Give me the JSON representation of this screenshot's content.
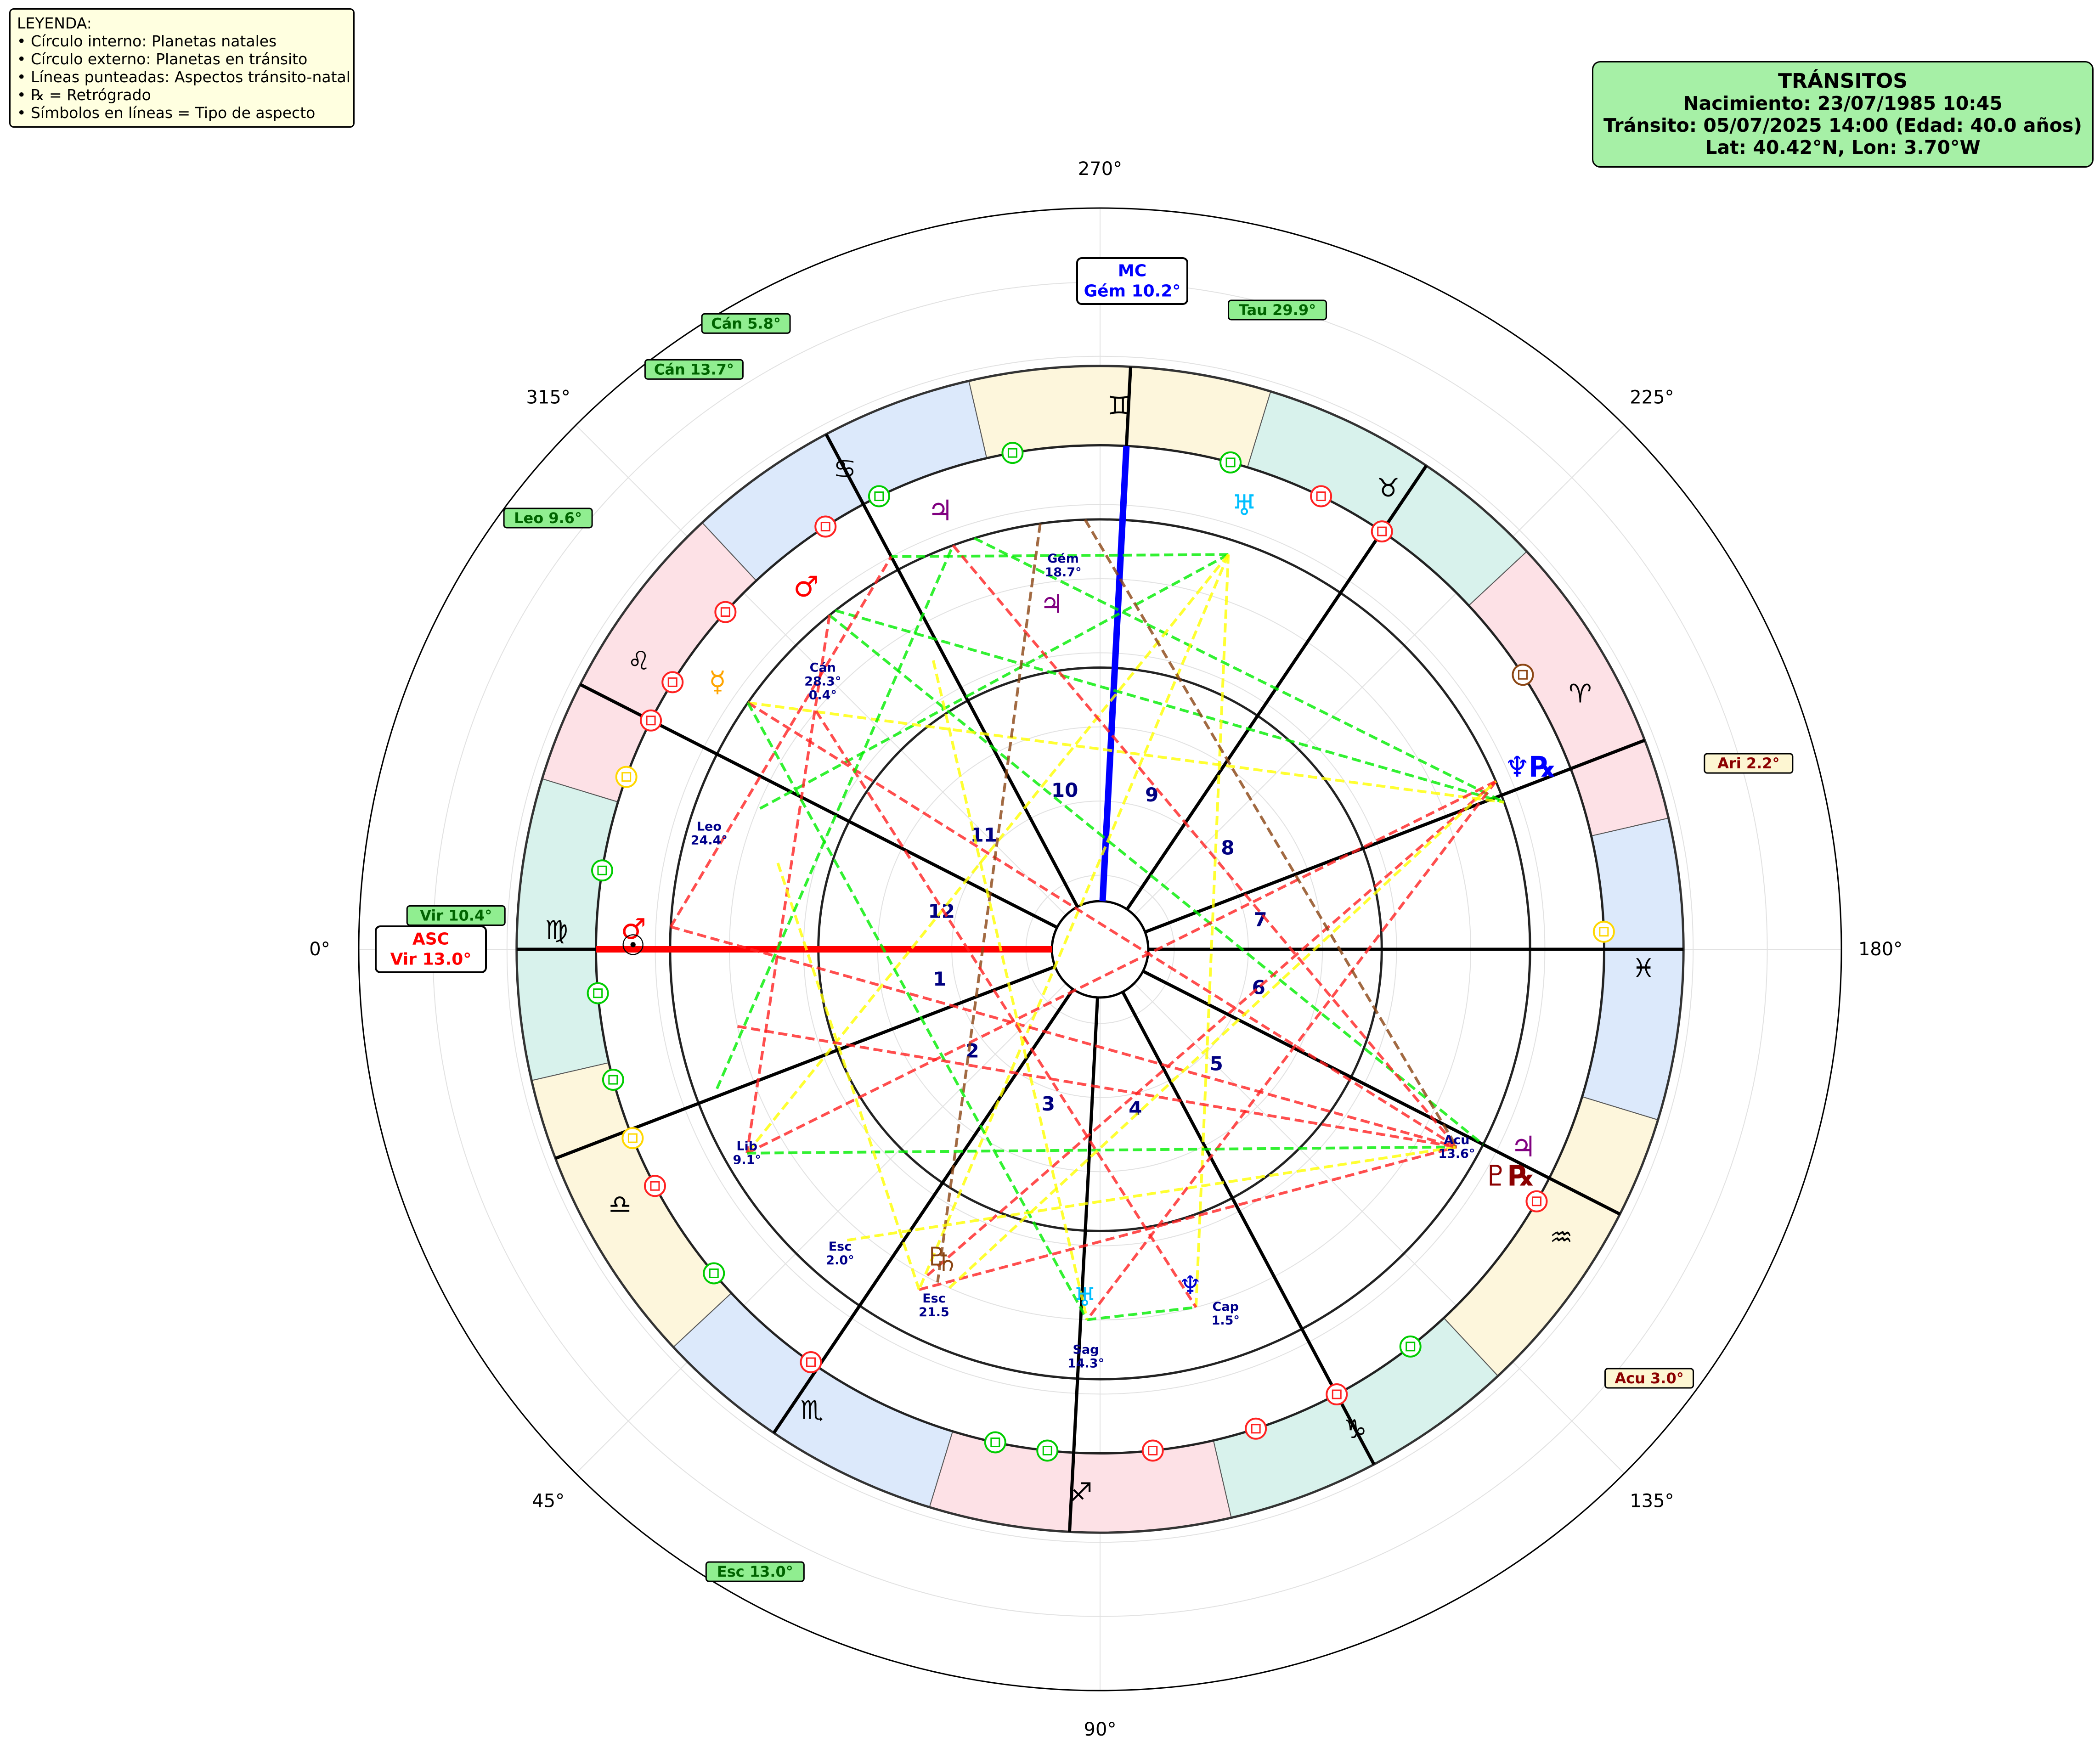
{
  "header": {
    "title": "TRÁNSITOS",
    "birth": "Nacimiento: 23/07/1985 10:45",
    "transit": "Tránsito: 05/07/2025 14:00 (Edad: 40.0 años)",
    "location": "Lat: 40.42°N, Lon: 3.70°W"
  },
  "legend": {
    "heading": "LEYENDA:",
    "items": [
      "• Círculo interno: Planetas natales",
      "• Círculo externo: Planetas en tránsito",
      "• Líneas punteadas: Aspectos tránsito-natal",
      "• ℞ = Retrógrado",
      "• Símbolos en líneas = Tipo de aspecto"
    ]
  },
  "chart_data": {
    "type": "polar",
    "angle_ticks": [
      "0°",
      "45°",
      "90°",
      "135°",
      "180°",
      "225°",
      "270°",
      "315°"
    ],
    "grid": true,
    "angles": {
      "asc": {
        "label": "ASC",
        "value": "Vir 13.0°",
        "color": "#ff0000"
      },
      "mc": {
        "label": "MC",
        "value": "Gém 10.2°",
        "color": "#0000ff"
      }
    },
    "signs": [
      {
        "glyph": "♍",
        "name": "Virgo",
        "color": "#d8f2ec"
      },
      {
        "glyph": "♎",
        "name": "Libra",
        "color": "#fdf6dc"
      },
      {
        "glyph": "♏",
        "name": "Escorpio",
        "color": "#dce9fb"
      },
      {
        "glyph": "♐",
        "name": "Sagitario",
        "color": "#fde1e6"
      },
      {
        "glyph": "♑",
        "name": "Capricornio",
        "color": "#d8f2ec"
      },
      {
        "glyph": "♒",
        "name": "Acuario",
        "color": "#fdf6dc"
      },
      {
        "glyph": "♓",
        "name": "Piscis",
        "color": "#dce9fb"
      },
      {
        "glyph": "♈",
        "name": "Aries",
        "color": "#fde1e6"
      },
      {
        "glyph": "♉",
        "name": "Tauro",
        "color": "#d8f2ec"
      },
      {
        "glyph": "♊",
        "name": "Géminis",
        "color": "#fdf6dc"
      },
      {
        "glyph": "♋",
        "name": "Cáncer",
        "color": "#dce9fb"
      },
      {
        "glyph": "♌",
        "name": "Leo",
        "color": "#fde1e6"
      }
    ],
    "houses": [
      {
        "num": "1",
        "cusp": 0
      },
      {
        "num": "2",
        "cusp": 21
      },
      {
        "num": "3",
        "cusp": 56
      },
      {
        "num": "4",
        "cusp": 87
      },
      {
        "num": "5",
        "cusp": 118
      },
      {
        "num": "6",
        "cusp": 153
      },
      {
        "num": "7",
        "cusp": 180
      },
      {
        "num": "8",
        "cusp": 201
      },
      {
        "num": "9",
        "cusp": 236
      },
      {
        "num": "10",
        "cusp": 267
      },
      {
        "num": "11",
        "cusp": 298
      },
      {
        "num": "12",
        "cusp": 333
      }
    ],
    "natal_labels": [
      {
        "text": [
          "Gém",
          "18.7°"
        ],
        "angle": 275.5,
        "r": 0.52
      },
      {
        "text": [
          "Cán",
          "28.3°",
          "0.4°"
        ],
        "angle": 316,
        "r": 0.52
      },
      {
        "text": [
          "Leo",
          "24.4°"
        ],
        "angle": 343.5,
        "r": 0.55
      },
      {
        "text": [
          "Lib",
          "9.1°"
        ],
        "angle": 30,
        "r": 0.55
      },
      {
        "text": [
          "Esc",
          "2.0°"
        ],
        "angle": 49.5,
        "r": 0.54
      },
      {
        "text": [
          "Esc",
          "21.5"
        ],
        "angle": 65,
        "r": 0.53
      },
      {
        "text": [
          "Sag",
          "14.3°"
        ],
        "angle": 88,
        "r": 0.55
      },
      {
        "text": [
          "Cap",
          "1.5°"
        ],
        "angle": 109,
        "r": 0.52
      },
      {
        "text": [
          "Acu",
          "13.6°"
        ],
        "angle": 151,
        "r": 0.55
      }
    ],
    "transit_labels": [
      {
        "text": "Tau 29.9°",
        "angle": 254.5,
        "r": 0.895,
        "color": "#006400"
      },
      {
        "text": "Cán 5.8°",
        "angle": 299.5,
        "r": 0.97,
        "color": "#006400"
      },
      {
        "text": "Cán 13.7°",
        "angle": 305,
        "r": 0.955,
        "color": "#006400"
      },
      {
        "text": "Leo 9.6°",
        "angle": 322,
        "r": 0.945,
        "color": "#006400"
      },
      {
        "text": "Vir 10.4°",
        "angle": 357,
        "r": 0.87,
        "color": "#006400"
      },
      {
        "text": "Esc 13.0°",
        "angle": 61,
        "r": 0.96,
        "color": "#006400"
      },
      {
        "text": "Ari 2.2°",
        "angle": 196,
        "r": 0.91,
        "color": "#8b0000"
      },
      {
        "text": "Acu 3.0°",
        "angle": 142,
        "r": 0.94,
        "color": "#8b0000"
      }
    ],
    "natal_planets": [
      {
        "glyph": "♃",
        "angle": 278,
        "color": "#800080"
      },
      {
        "glyph": "♇",
        "angle": 62,
        "color": "#8b4513"
      },
      {
        "glyph": "♄",
        "angle": 64,
        "color": "#8b4513"
      },
      {
        "glyph": "♅",
        "angle": 87.5,
        "color": "#00bfff"
      },
      {
        "glyph": "♆",
        "angle": 105,
        "color": "#0000cd"
      }
    ],
    "transit_planets": [
      {
        "glyph": "♅",
        "angle": 252,
        "color": "#00bfff"
      },
      {
        "glyph": "♃",
        "angle": 290,
        "color": "#800080"
      },
      {
        "glyph": "♂",
        "angle": 309,
        "color": "#ff0000"
      },
      {
        "glyph": "☿",
        "angle": 325,
        "color": "#ffa500"
      },
      {
        "glyph": "♂",
        "angle": 357.5,
        "color": "#ff0000"
      },
      {
        "glyph": "☉",
        "angle": 359.5,
        "color": "#000000"
      },
      {
        "glyph": "♆℞",
        "angle": 203,
        "color": "#0000ff"
      },
      {
        "glyph": "♇℞",
        "angle": 151,
        "color": "#8b0000"
      },
      {
        "glyph": "♃",
        "angle": 155,
        "color": "#800080"
      }
    ]
  }
}
